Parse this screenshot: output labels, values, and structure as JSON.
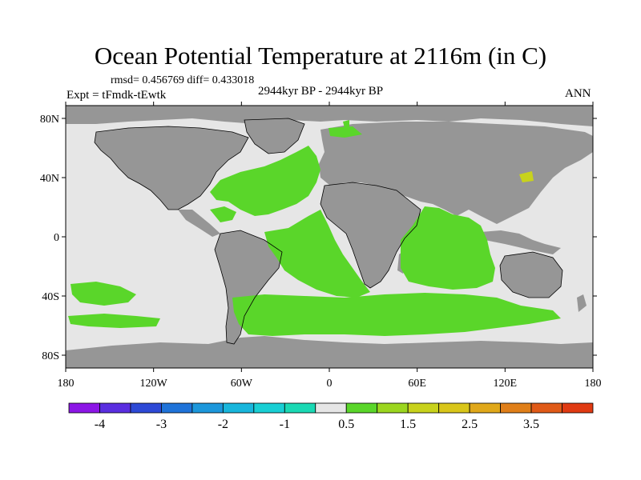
{
  "title": "Ocean Potential Temperature at 2116m (in C)",
  "stats": "rmsd= 0.456769 diff= 0.433018",
  "experiment": "Expt = tFmdk-tEwtk",
  "period": "2944kyr BP - 2944kyr BP",
  "season": "ANN",
  "lat_labels": [
    "80N",
    "40N",
    "0",
    "40S",
    "80S"
  ],
  "lon_labels": [
    "180",
    "120W",
    "60W",
    "0",
    "60E",
    "120E",
    "180"
  ],
  "colorbar": {
    "colors": [
      "#8c16e6",
      "#5a2ee0",
      "#2d49d6",
      "#1f73d9",
      "#1c97db",
      "#18b6dc",
      "#19cfd4",
      "#1ad9b4",
      "#e6e6e6",
      "#5ad62a",
      "#9bd61f",
      "#c8d21c",
      "#d9c61a",
      "#e0a81a",
      "#e07f19",
      "#e05a17",
      "#e03a12"
    ],
    "labels": [
      "-4",
      "-3",
      "-2",
      "-1",
      "0.5",
      "1.5",
      "2.5",
      "3.5"
    ]
  },
  "map_colors": {
    "ocean_neutral": "#e6e6e6",
    "land": "#969696",
    "warm_anomaly": "#5ad62a",
    "hot_spot": "#c8d21c"
  }
}
